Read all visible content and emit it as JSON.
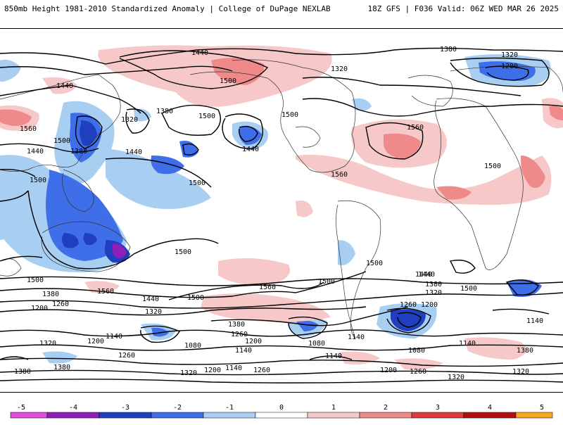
{
  "header": {
    "left_title": "850mb Height 1981-2010 Standardized Anomaly | College of DuPage NEXLAB",
    "right_title": "18Z GFS | F036 Valid: 06Z WED MAR 26 2025"
  },
  "colorbar": {
    "labels": [
      "-5",
      "-4",
      "-3",
      "-2",
      "-1",
      "0",
      "1",
      "2",
      "3",
      "4",
      "5"
    ],
    "colors": [
      "#e04de0",
      "#8e1fb8",
      "#1f3fbf",
      "#3f6fe8",
      "#a8cef2",
      "#ffffff",
      "#f7c8c8",
      "#ee8a8a",
      "#d93c3c",
      "#b01010",
      "#f5a623"
    ]
  },
  "contour_labels": [
    {
      "text": "1440"
    },
    {
      "text": "1380"
    },
    {
      "text": "1320"
    },
    {
      "text": "1200"
    },
    {
      "text": "1500"
    },
    {
      "text": "1320"
    },
    {
      "text": "1440"
    },
    {
      "text": "1380"
    },
    {
      "text": "1560"
    },
    {
      "text": "1500"
    },
    {
      "text": "1440"
    },
    {
      "text": "1380"
    },
    {
      "text": "1320"
    },
    {
      "text": "1440"
    },
    {
      "text": "1500"
    },
    {
      "text": "1500"
    },
    {
      "text": "1440"
    },
    {
      "text": "1500"
    },
    {
      "text": "1560"
    },
    {
      "text": "1560"
    },
    {
      "text": "1500"
    },
    {
      "text": "1500"
    },
    {
      "text": "1500"
    },
    {
      "text": "1500"
    },
    {
      "text": "1560"
    },
    {
      "text": "1500"
    },
    {
      "text": "1440"
    },
    {
      "text": "1380"
    },
    {
      "text": "1260"
    },
    {
      "text": "1200"
    },
    {
      "text": "1440"
    },
    {
      "text": "1500"
    },
    {
      "text": "1560"
    },
    {
      "text": "1500"
    },
    {
      "text": "1440"
    },
    {
      "text": "1380"
    },
    {
      "text": "1320"
    },
    {
      "text": "1500"
    },
    {
      "text": "1320"
    },
    {
      "text": "1380"
    },
    {
      "text": "1260"
    },
    {
      "text": "1200"
    },
    {
      "text": "1140"
    },
    {
      "text": "1200"
    },
    {
      "text": "1320"
    },
    {
      "text": "1140"
    },
    {
      "text": "1080"
    },
    {
      "text": "1260"
    },
    {
      "text": "1380"
    },
    {
      "text": "1320"
    },
    {
      "text": "1200"
    },
    {
      "text": "1260"
    },
    {
      "text": "1140"
    },
    {
      "text": "1260"
    },
    {
      "text": "1200"
    },
    {
      "text": "1140"
    },
    {
      "text": "1080"
    },
    {
      "text": "1140"
    },
    {
      "text": "1080"
    },
    {
      "text": "1140"
    },
    {
      "text": "1200"
    },
    {
      "text": "1260"
    },
    {
      "text": "1320"
    },
    {
      "text": "1140"
    },
    {
      "text": "1380"
    },
    {
      "text": "1320"
    },
    {
      "text": "1380"
    }
  ]
}
